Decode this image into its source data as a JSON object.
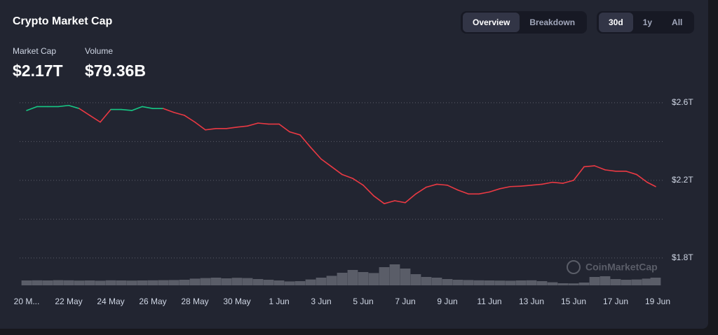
{
  "header": {
    "title": "Crypto Market Cap",
    "stats": [
      {
        "label": "Market Cap",
        "value": "$2.17T"
      },
      {
        "label": "Volume",
        "value": "$79.36B"
      }
    ]
  },
  "controls": {
    "view": [
      "Overview",
      "Breakdown"
    ],
    "view_active": 0,
    "range": [
      "30d",
      "1y",
      "All"
    ],
    "range_active": 0
  },
  "chart_data": {
    "type": "line",
    "watermark": "CoinMarketCap",
    "x": [
      0,
      0.5,
      1,
      1.5,
      2,
      2.5,
      3,
      3.5,
      4,
      4.5,
      5,
      5.5,
      6,
      6.5,
      7,
      7.5,
      8,
      8.5,
      9,
      9.5,
      10,
      10.5,
      11,
      11.5,
      12,
      12.5,
      13,
      13.5,
      14,
      14.5,
      15,
      15.5,
      16,
      16.5,
      17,
      17.5,
      18,
      18.5,
      19,
      19.5,
      20,
      20.5,
      21,
      21.5,
      22,
      22.5,
      23,
      23.5,
      24,
      24.5,
      25,
      25.5,
      26,
      26.5,
      27,
      27.5,
      28,
      28.5,
      29,
      29.5,
      29.9
    ],
    "series": [
      {
        "name": "Market Cap",
        "color_up": "#16c784",
        "color_down": "#ea3943",
        "values": [
          2.56,
          2.58,
          2.58,
          2.58,
          2.586,
          2.57,
          2.535,
          2.5,
          2.565,
          2.565,
          2.56,
          2.58,
          2.57,
          2.57,
          2.55,
          2.535,
          2.5,
          2.46,
          2.467,
          2.467,
          2.474,
          2.48,
          2.495,
          2.49,
          2.49,
          2.45,
          2.434,
          2.37,
          2.31,
          2.27,
          2.23,
          2.21,
          2.175,
          2.12,
          2.08,
          2.095,
          2.085,
          2.13,
          2.165,
          2.18,
          2.175,
          2.15,
          2.13,
          2.13,
          2.14,
          2.157,
          2.168,
          2.17,
          2.175,
          2.18,
          2.19,
          2.185,
          2.2,
          2.27,
          2.275,
          2.254,
          2.247,
          2.247,
          2.23,
          2.19,
          2.168
        ]
      }
    ],
    "volume": {
      "name": "Volume",
      "color": "#5a5d68",
      "values": [
        35,
        36,
        35,
        37,
        36,
        34,
        35,
        33,
        36,
        35,
        34,
        35,
        36,
        37,
        38,
        40,
        48,
        52,
        55,
        50,
        54,
        52,
        45,
        40,
        35,
        28,
        30,
        42,
        55,
        68,
        90,
        110,
        95,
        88,
        130,
        150,
        120,
        80,
        60,
        55,
        45,
        40,
        38,
        36,
        35,
        34,
        33,
        35,
        36,
        30,
        22,
        15,
        14,
        20,
        60,
        65,
        45,
        40,
        42,
        48,
        55
      ]
    },
    "xlim": [
      0,
      30
    ],
    "xticks": [
      {
        "value": 0,
        "label": "20 M..."
      },
      {
        "value": 2,
        "label": "22 May"
      },
      {
        "value": 4,
        "label": "24 May"
      },
      {
        "value": 6,
        "label": "26 May"
      },
      {
        "value": 8,
        "label": "28 May"
      },
      {
        "value": 10,
        "label": "30 May"
      },
      {
        "value": 12,
        "label": "1 Jun"
      },
      {
        "value": 14,
        "label": "3 Jun"
      },
      {
        "value": 16,
        "label": "5 Jun"
      },
      {
        "value": 18,
        "label": "7 Jun"
      },
      {
        "value": 20,
        "label": "9 Jun"
      },
      {
        "value": 22,
        "label": "11 Jun"
      },
      {
        "value": 24,
        "label": "13 Jun"
      },
      {
        "value": 26,
        "label": "15 Jun"
      },
      {
        "value": 28,
        "label": "17 Jun"
      },
      {
        "value": 30,
        "label": "19 Jun"
      }
    ],
    "ylim": [
      1.65,
      2.65
    ],
    "yticks": [
      {
        "value": 1.8,
        "label": "$1.8T"
      },
      {
        "value": 2.2,
        "label": "$2.2T"
      },
      {
        "value": 2.6,
        "label": "$2.6T"
      }
    ],
    "minor_gridlines": [
      2.0,
      2.4
    ],
    "grid": true
  }
}
